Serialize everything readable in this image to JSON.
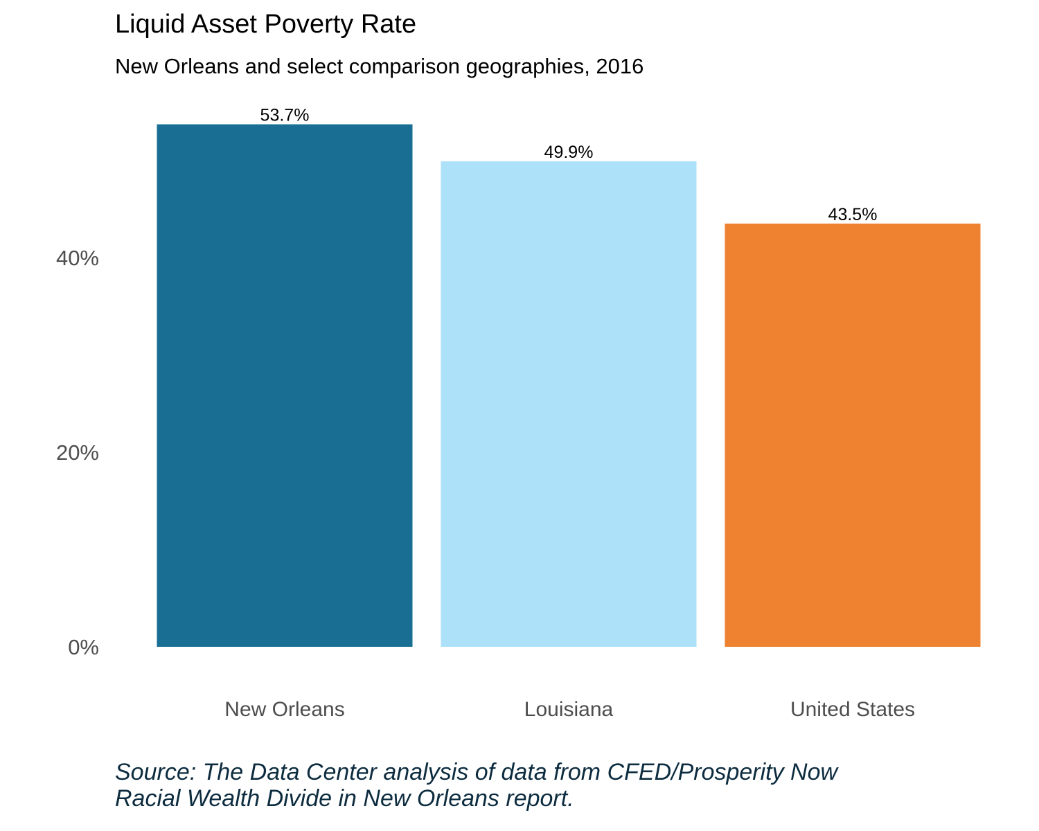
{
  "chart_data": {
    "type": "bar",
    "title": "Liquid Asset Poverty Rate",
    "subtitle": "New Orleans and select comparison geographies, 2016",
    "caption_lines": [
      "Source: The Data Center analysis of data from CFED/Prosperity Now",
      "Racial Wealth Divide in New Orleans report."
    ],
    "categories": [
      "New Orleans",
      "Louisiana",
      "United States"
    ],
    "values": [
      53.7,
      49.9,
      43.5
    ],
    "data_labels": [
      "53.7%",
      "49.9%",
      "43.5%"
    ],
    "colors": [
      "#186f93",
      "#ade1fa",
      "#ee8230"
    ],
    "xlabel": "",
    "ylabel": "",
    "ylim": [
      0,
      56
    ],
    "yticks": [
      0,
      20,
      40
    ],
    "ytick_labels": [
      "0%",
      "20%",
      "40%"
    ],
    "grid": false,
    "legend": "none"
  }
}
